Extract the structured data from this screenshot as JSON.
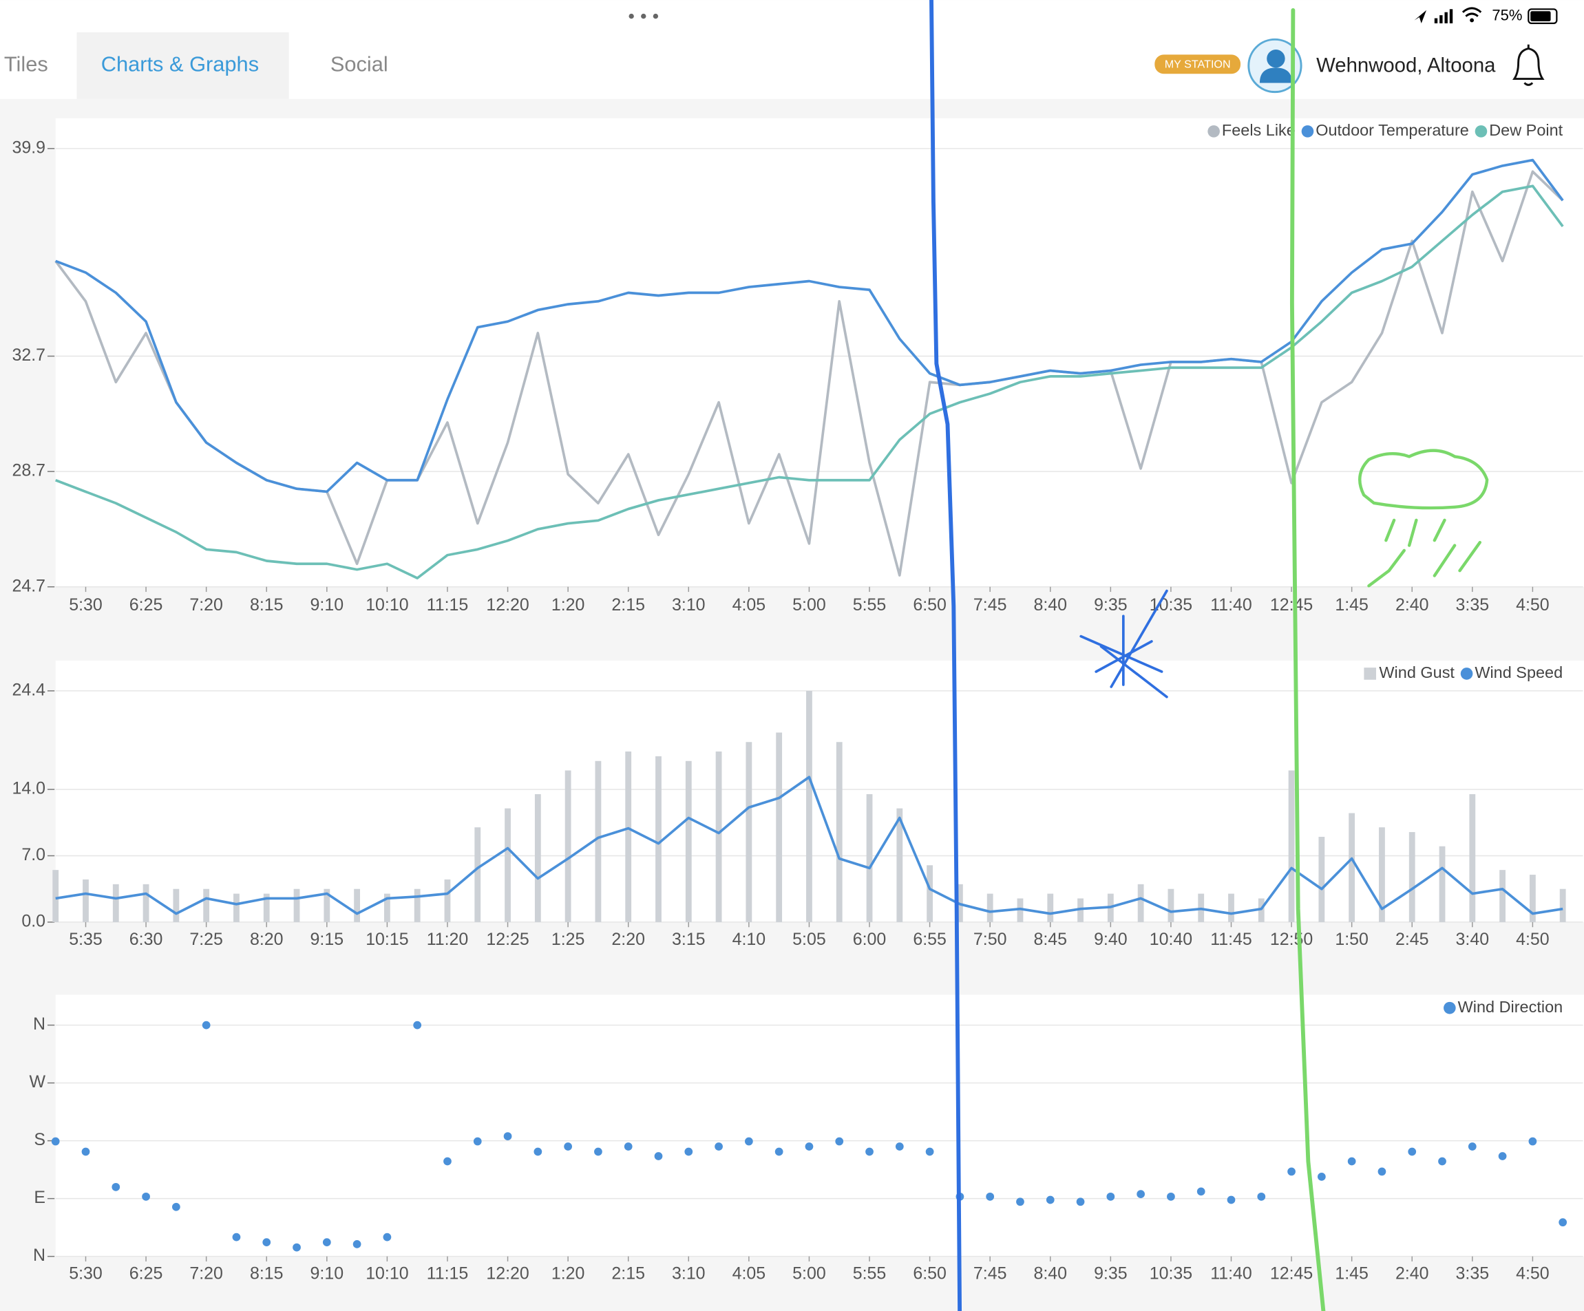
{
  "ui": {
    "battery": "75%",
    "tabs": [
      "Tiles",
      "Charts & Graphs",
      "Social"
    ],
    "badge": "MY STATION",
    "location": "Wehnwood, Altoona"
  },
  "chart_data": [
    {
      "type": "line",
      "grid": true,
      "ylim": [
        24.7,
        39.9
      ],
      "yticks": [
        24.7,
        28.7,
        32.7,
        39.9
      ],
      "categories": [
        null,
        "5:30",
        null,
        "6:25",
        null,
        "7:20",
        null,
        "8:15",
        null,
        "9:10",
        null,
        "10:10",
        null,
        "11:15",
        null,
        "12:20",
        null,
        "1:20",
        null,
        "2:15",
        null,
        "3:10",
        null,
        "4:05",
        null,
        "5:00",
        null,
        "5:55",
        null,
        "6:50",
        null,
        "7:45",
        null,
        "8:40",
        null,
        "9:35",
        null,
        "10:35",
        null,
        "11:40",
        null,
        "12:45",
        null,
        "1:45",
        null,
        "2:40",
        null,
        "3:35",
        null,
        "4:50",
        null
      ],
      "series": [
        {
          "name": "Feels Like",
          "color": "#b3bac2",
          "values": [
            36.0,
            34.6,
            31.8,
            33.5,
            31.1,
            29.7,
            29.0,
            28.4,
            28.1,
            28.0,
            25.5,
            28.4,
            28.4,
            30.4,
            26.9,
            29.7,
            33.5,
            28.6,
            27.6,
            29.3,
            26.5,
            28.6,
            31.1,
            26.9,
            29.3,
            26.2,
            34.6,
            29.0,
            25.1,
            31.8,
            31.7,
            31.8,
            32.0,
            32.2,
            32.1,
            32.2,
            28.8,
            32.5,
            32.5,
            32.6,
            32.5,
            28.3,
            31.1,
            31.8,
            33.5,
            36.7,
            33.5,
            38.4,
            36.0,
            39.1,
            38.1
          ]
        },
        {
          "name": "Outdoor Temperature",
          "color": "#4a90d9",
          "values": [
            36.0,
            35.6,
            34.9,
            33.9,
            31.1,
            29.7,
            29.0,
            28.4,
            28.1,
            28.0,
            29.0,
            28.4,
            28.4,
            31.2,
            33.7,
            33.9,
            34.3,
            34.5,
            34.6,
            34.9,
            34.8,
            34.9,
            34.9,
            35.1,
            35.2,
            35.3,
            35.1,
            35.0,
            33.3,
            32.1,
            31.7,
            31.8,
            32.0,
            32.2,
            32.1,
            32.2,
            32.4,
            32.5,
            32.5,
            32.6,
            32.5,
            33.2,
            34.6,
            35.6,
            36.4,
            36.6,
            37.7,
            39.0,
            39.3,
            39.5,
            38.1
          ]
        },
        {
          "name": "Dew Point",
          "color": "#6cbfb6",
          "values": [
            28.4,
            28.0,
            27.6,
            27.1,
            26.6,
            26.0,
            25.9,
            25.6,
            25.5,
            25.5,
            25.3,
            25.5,
            25.0,
            25.8,
            26.0,
            26.3,
            26.7,
            26.9,
            27.0,
            27.4,
            27.7,
            27.9,
            28.1,
            28.3,
            28.5,
            28.4,
            28.4,
            28.4,
            29.8,
            30.7,
            31.1,
            31.4,
            31.8,
            32.0,
            32.0,
            32.1,
            32.2,
            32.3,
            32.3,
            32.3,
            32.3,
            33.0,
            33.9,
            34.9,
            35.3,
            35.8,
            36.7,
            37.6,
            38.4,
            38.6,
            37.2
          ]
        }
      ]
    },
    {
      "type": "combo",
      "grid": true,
      "ylim": [
        0,
        24.4
      ],
      "yticks": [
        {
          "value": 0,
          "label": "0.0"
        },
        {
          "value": 7,
          "label": "7.0"
        },
        {
          "value": 14,
          "label": "14.0"
        },
        24.4
      ],
      "categories": [
        null,
        "5:35",
        null,
        "6:30",
        null,
        "7:25",
        null,
        "8:20",
        null,
        "9:15",
        null,
        "10:15",
        null,
        "11:20",
        null,
        "12:25",
        null,
        "1:25",
        null,
        "2:20",
        null,
        "3:15",
        null,
        "4:10",
        null,
        "5:05",
        null,
        "6:00",
        null,
        "6:55",
        null,
        "7:50",
        null,
        "8:45",
        null,
        "9:40",
        null,
        "10:40",
        null,
        "11:45",
        null,
        "12:50",
        null,
        "1:50",
        null,
        "2:45",
        null,
        "3:40",
        null,
        "4:50",
        null
      ],
      "series": [
        {
          "name": "Wind Gust",
          "type": "bar",
          "color": "#cdd1d6",
          "values": [
            5.5,
            4.5,
            4.0,
            4.0,
            3.5,
            3.5,
            3.0,
            3.0,
            3.5,
            3.5,
            3.5,
            3.0,
            3.5,
            4.5,
            10.0,
            12.0,
            13.5,
            16.0,
            17.0,
            18.0,
            17.5,
            17.0,
            18.0,
            19.0,
            20.0,
            24.4,
            19.0,
            13.5,
            12.0,
            6.0,
            4.0,
            3.0,
            2.5,
            3.0,
            2.5,
            3.0,
            4.0,
            3.5,
            3.0,
            3.0,
            2.5,
            16.0,
            9.0,
            11.5,
            10.0,
            9.5,
            8.0,
            13.5,
            5.5,
            5.0,
            3.5
          ]
        },
        {
          "name": "Wind Speed",
          "type": "line",
          "color": "#4a90d9",
          "values": [
            2.5,
            3.0,
            2.5,
            3.0,
            0.9,
            2.5,
            1.9,
            2.5,
            2.5,
            3.0,
            0.9,
            2.5,
            2.7,
            3.0,
            5.7,
            7.8,
            4.6,
            6.7,
            8.9,
            9.9,
            8.3,
            11.0,
            9.4,
            12.1,
            13.1,
            15.3,
            6.7,
            5.7,
            11.0,
            3.5,
            1.9,
            1.1,
            1.4,
            0.9,
            1.4,
            1.6,
            2.5,
            1.1,
            1.4,
            0.9,
            1.4,
            5.7,
            3.5,
            6.7,
            1.4,
            3.5,
            5.7,
            3.0,
            3.5,
            0.9,
            1.4
          ]
        }
      ]
    },
    {
      "type": "scatter",
      "grid": true,
      "ylim": [
        0,
        360
      ],
      "yticks": [
        {
          "value": 0,
          "label": "N"
        },
        {
          "value": 90,
          "label": "E"
        },
        {
          "value": 180,
          "label": "S"
        },
        {
          "value": 270,
          "label": "W"
        },
        {
          "value": 360,
          "label": "N"
        }
      ],
      "categories": [
        null,
        "5:30",
        null,
        "6:25",
        null,
        "7:20",
        null,
        "8:15",
        null,
        "9:10",
        null,
        "10:10",
        null,
        "11:15",
        null,
        "12:20",
        null,
        "1:20",
        null,
        "2:15",
        null,
        "3:10",
        null,
        "4:05",
        null,
        "5:00",
        null,
        "5:55",
        null,
        "6:50",
        null,
        "7:45",
        null,
        "8:40",
        null,
        "9:35",
        null,
        "10:35",
        null,
        "11:40",
        null,
        "12:45",
        null,
        "1:45",
        null,
        "2:40",
        null,
        "3:35",
        null,
        "4:50",
        null
      ],
      "series": [
        {
          "name": "Wind Direction",
          "color": "#4a90d9",
          "values": [
            179,
            163,
            108,
            93,
            77,
            360,
            30,
            22,
            14,
            22,
            19,
            30,
            360,
            148,
            179,
            187,
            163,
            171,
            163,
            171,
            156,
            163,
            171,
            179,
            163,
            171,
            179,
            163,
            171,
            163,
            93,
            93,
            85,
            88,
            85,
            93,
            97,
            93,
            101,
            88,
            93,
            132,
            124,
            148,
            132,
            163,
            148,
            171,
            156,
            179,
            53
          ]
        }
      ]
    }
  ]
}
